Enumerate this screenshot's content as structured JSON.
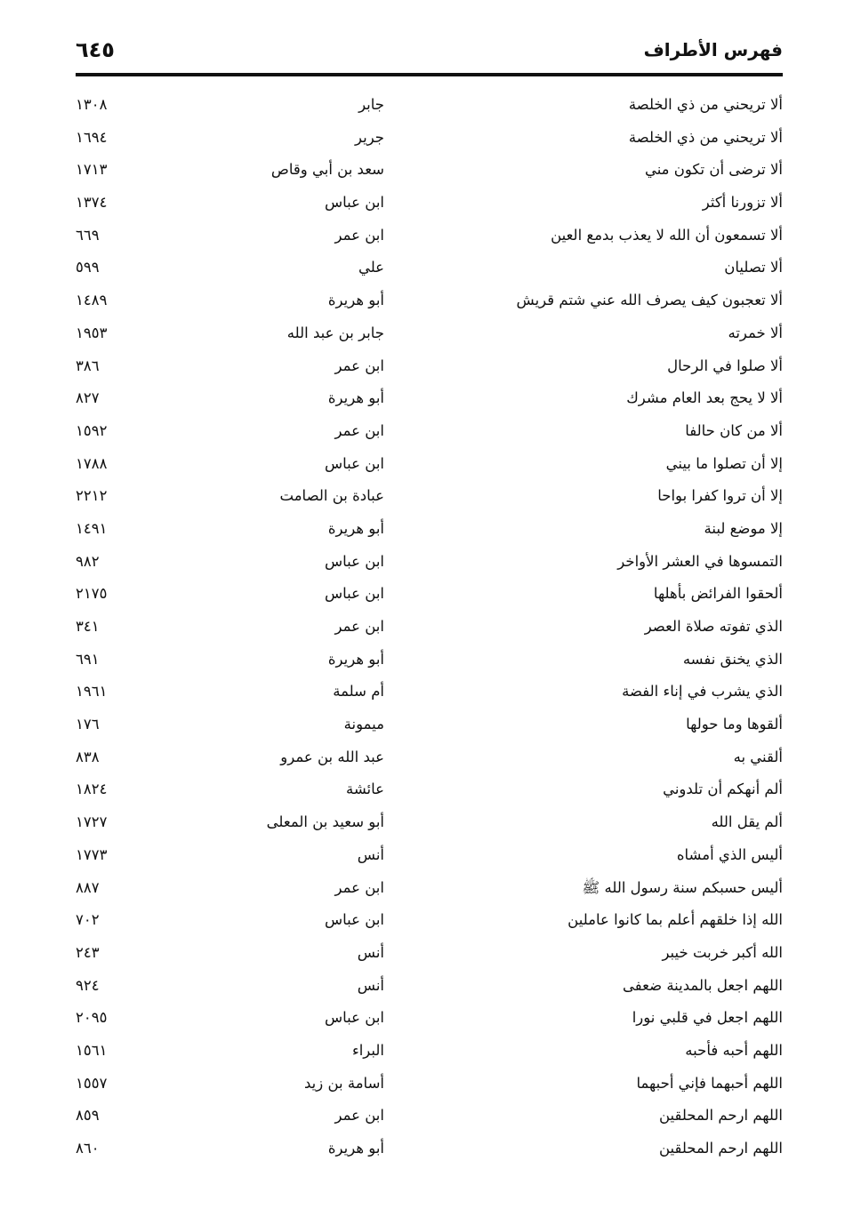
{
  "header": {
    "title": "فهرس الأطراف",
    "page_number": "٦٤٥"
  },
  "rows": [
    {
      "phrase": "ألا تريحني من ذي الخلصة",
      "narrator": "جابر",
      "ref": "١٣٠٨"
    },
    {
      "phrase": "ألا تريحني من ذي الخلصة",
      "narrator": "جرير",
      "ref": "١٦٩٤"
    },
    {
      "phrase": "ألا ترضى أن تكون مني",
      "narrator": "سعد بن أبي وقاص",
      "ref": "١٧١٣"
    },
    {
      "phrase": "ألا تزورنا أكثر",
      "narrator": "ابن عباس",
      "ref": "١٣٧٤"
    },
    {
      "phrase": "ألا تسمعون أن الله لا يعذب بدمع العين",
      "narrator": "ابن عمر",
      "ref": "٦٦٩"
    },
    {
      "phrase": "ألا تصليان",
      "narrator": "علي",
      "ref": "٥٩٩"
    },
    {
      "phrase": "ألا تعجبون كيف يصرف الله عني شتم قريش",
      "narrator": "أبو هريرة",
      "ref": "١٤٨٩"
    },
    {
      "phrase": "ألا خمرته",
      "narrator": "جابر بن عبد الله",
      "ref": "١٩٥٣"
    },
    {
      "phrase": "ألا صلوا في الرحال",
      "narrator": "ابن عمر",
      "ref": "٣٨٦"
    },
    {
      "phrase": "ألا لا يحج بعد العام مشرك",
      "narrator": "أبو هريرة",
      "ref": "٨٢٧"
    },
    {
      "phrase": "ألا من كان حالفا",
      "narrator": "ابن عمر",
      "ref": "١٥٩٢"
    },
    {
      "phrase": "إلا أن تصلوا ما بيني",
      "narrator": "ابن عباس",
      "ref": "١٧٨٨"
    },
    {
      "phrase": "إلا أن تروا كفرا بواحا",
      "narrator": "عبادة بن الصامت",
      "ref": "٢٢١٢"
    },
    {
      "phrase": "إلا موضع لبنة",
      "narrator": "أبو هريرة",
      "ref": "١٤٩١"
    },
    {
      "phrase": "التمسوها في العشر الأواخر",
      "narrator": "ابن عباس",
      "ref": "٩٨٢"
    },
    {
      "phrase": "ألحقوا الفرائض بأهلها",
      "narrator": "ابن عباس",
      "ref": "٢١٧٥"
    },
    {
      "phrase": "الذي تفوته صلاة العصر",
      "narrator": "ابن عمر",
      "ref": "٣٤١"
    },
    {
      "phrase": "الذي يخنق نفسه",
      "narrator": "أبو هريرة",
      "ref": "٦٩١"
    },
    {
      "phrase": "الذي يشرب في إناء الفضة",
      "narrator": "أم سلمة",
      "ref": "١٩٦١"
    },
    {
      "phrase": "ألقوها وما حولها",
      "narrator": "ميمونة",
      "ref": "١٧٦"
    },
    {
      "phrase": "ألقني به",
      "narrator": "عبد الله بن عمرو",
      "ref": "٨٣٨"
    },
    {
      "phrase": "ألم أنهكم أن تلدوني",
      "narrator": "عائشة",
      "ref": "١٨٢٤"
    },
    {
      "phrase": "ألم يقل الله",
      "narrator": "أبو سعيد بن المعلى",
      "ref": "١٧٢٧"
    },
    {
      "phrase": "أليس الذي أمشاه",
      "narrator": "أنس",
      "ref": "١٧٧٣"
    },
    {
      "phrase": "أليس حسبكم سنة رسول الله ﷺ",
      "narrator": "ابن عمر",
      "ref": "٨٨٧"
    },
    {
      "phrase": "الله إذا خلقهم أعلم بما كانوا عاملين",
      "narrator": "ابن عباس",
      "ref": "٧٠٢"
    },
    {
      "phrase": "الله أكبر خربت خيبر",
      "narrator": "أنس",
      "ref": "٢٤٣"
    },
    {
      "phrase": "اللهم اجعل بالمدينة ضعفى",
      "narrator": "أنس",
      "ref": "٩٢٤"
    },
    {
      "phrase": "اللهم اجعل في قلبي نورا",
      "narrator": "ابن عباس",
      "ref": "٢٠٩٥"
    },
    {
      "phrase": "اللهم أحبه فأحبه",
      "narrator": "البراء",
      "ref": "١٥٦١"
    },
    {
      "phrase": "اللهم أحبهما فإني أحبهما",
      "narrator": "أسامة بن زيد",
      "ref": "١٥٥٧"
    },
    {
      "phrase": "اللهم ارحم المحلقين",
      "narrator": "ابن عمر",
      "ref": "٨٥٩"
    },
    {
      "phrase": "اللهم ارحم المحلقين",
      "narrator": "أبو هريرة",
      "ref": "٨٦٠"
    }
  ]
}
